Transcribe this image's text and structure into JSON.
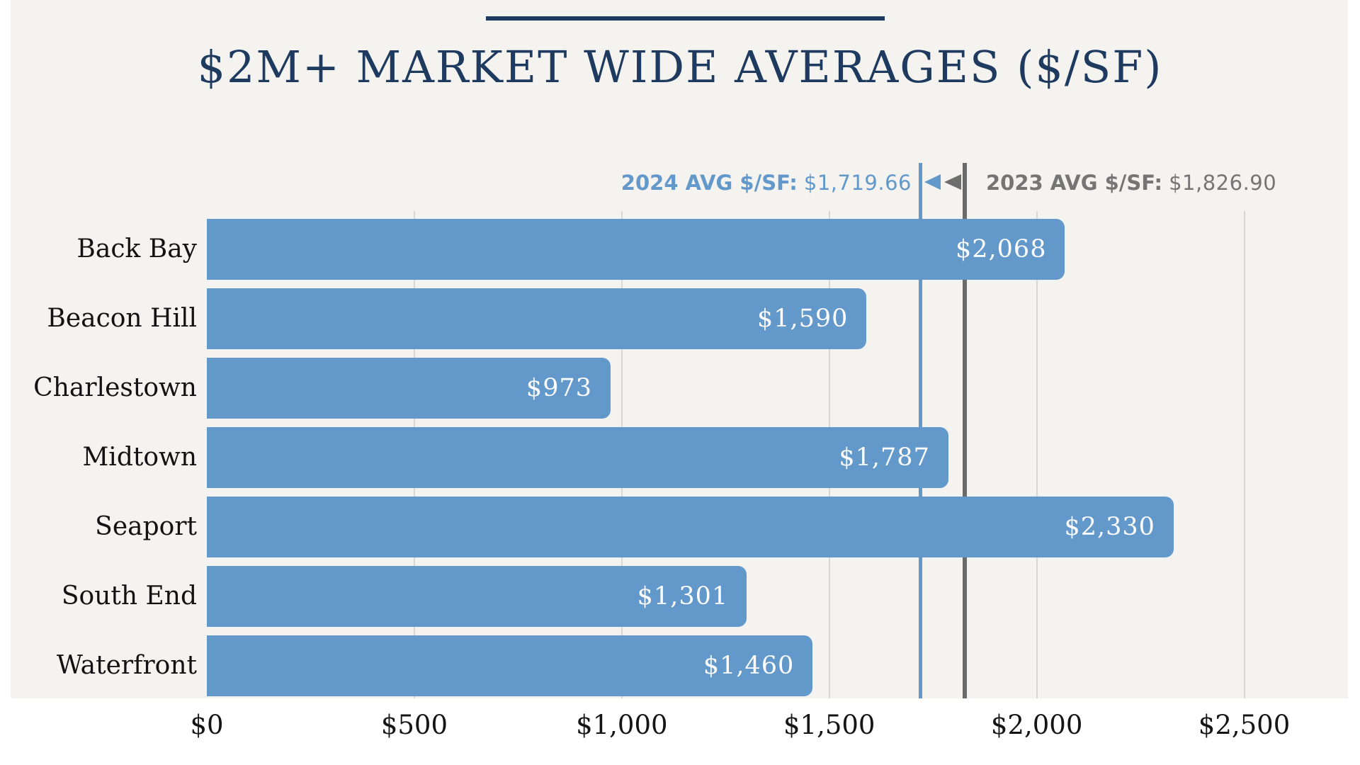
{
  "page": {
    "background": "#ffffff",
    "panel_background": "#f4f3f0"
  },
  "header": {
    "rule_color": "#1f3a5f",
    "title_color": "#1f3a5f"
  },
  "legend": {
    "markers": [
      "left-arrow-icon",
      "left-arrow-icon"
    ],
    "marker_colors": [
      "#6398cb",
      "#6e6e6e"
    ]
  },
  "chart_data": {
    "type": "bar",
    "orientation": "horizontal",
    "title": "$2M+ MARKET WIDE AVERAGES ($/SF)",
    "categories": [
      "Back Bay",
      "Beacon Hill",
      "Charlestown",
      "Midtown",
      "Seaport",
      "South End",
      "Waterfront"
    ],
    "values": [
      2068,
      1590,
      973,
      1787,
      2330,
      1301,
      1460
    ],
    "value_labels": [
      "$2,068",
      "$1,590",
      "$973",
      "$1,787",
      "$2,330",
      "$1,301",
      "$1,460"
    ],
    "bar_color": "#6398cb",
    "value_label_color": "#fdfdfd",
    "xlabel": "",
    "ylabel": "",
    "xlim": [
      0,
      2750
    ],
    "grid": true,
    "gridline_color": "#d9d7d3",
    "x_ticks": [
      {
        "value": 0,
        "label": "$0"
      },
      {
        "value": 500,
        "label": "$500"
      },
      {
        "value": 1000,
        "label": "$1,000"
      },
      {
        "value": 1500,
        "label": "$1,500"
      },
      {
        "value": 2000,
        "label": "$2,000"
      },
      {
        "value": 2500,
        "label": "$2,500"
      }
    ],
    "reference_lines": [
      {
        "year": "2024",
        "label": "2024 AVG $/SF:",
        "value": 1719.66,
        "value_label": "$1,719.66",
        "color": "#6398cb",
        "line_width": 5
      },
      {
        "year": "2023",
        "label": "2023 AVG $/SF:",
        "value": 1826.9,
        "value_label": "$1,826.90",
        "color": "#6b6b6b",
        "line_width": 6
      }
    ],
    "legend_position": "top-right"
  }
}
